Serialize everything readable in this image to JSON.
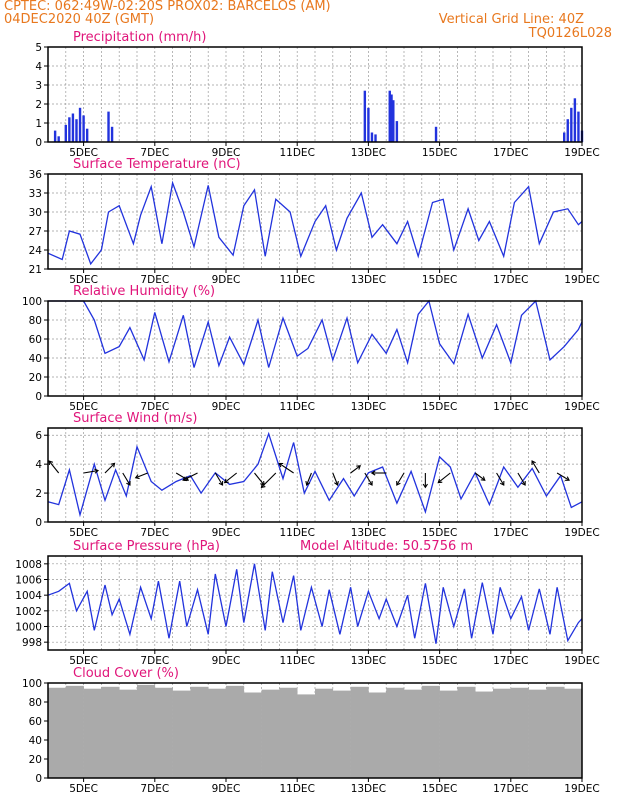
{
  "header": {
    "line1_left": "CPTEC:   062:49W-02:20S   PROX02: BARCELOS (AM)",
    "line2_left": "04DEC2020 40Z (GMT)",
    "line2_right": "Vertical Grid Line: 40Z",
    "line3_right": "TQ0126L028"
  },
  "colors": {
    "header": "#e8781e",
    "title": "#e0157a",
    "series": "#2233dd",
    "cloud": "#aaaaaa",
    "arrow": "#000000"
  },
  "chart_data": [
    {
      "type": "bar",
      "title": "Precipitation (mm/h)",
      "x_ticks": [
        "5DEC",
        "7DEC",
        "9DEC",
        "11DEC",
        "13DEC",
        "15DEC",
        "17DEC",
        "19DEC"
      ],
      "ylim": [
        0,
        5
      ],
      "y_ticks": [
        "0",
        "1",
        "2",
        "3",
        "4",
        "5"
      ],
      "grid": true,
      "x": [
        4.2,
        4.3,
        4.5,
        4.6,
        4.7,
        4.8,
        4.9,
        5.0,
        5.1,
        5.7,
        5.8,
        12.9,
        13.0,
        13.1,
        13.2,
        13.6,
        13.65,
        13.7,
        13.8,
        14.9,
        18.5,
        18.6,
        18.7,
        18.8,
        18.9,
        19.0
      ],
      "values": [
        0.6,
        0.3,
        0.9,
        1.3,
        1.5,
        1.2,
        1.8,
        1.4,
        0.7,
        1.6,
        0.8,
        2.7,
        1.8,
        0.5,
        0.4,
        2.7,
        2.5,
        2.2,
        1.1,
        0.8,
        0.5,
        1.2,
        1.8,
        2.3,
        1.6,
        0.6
      ]
    },
    {
      "type": "line",
      "title": "Surface Temperature (nC)",
      "x_ticks": [
        "5DEC",
        "7DEC",
        "9DEC",
        "11DEC",
        "13DEC",
        "15DEC",
        "17DEC",
        "19DEC"
      ],
      "ylim": [
        21,
        36
      ],
      "y_ticks": [
        "21",
        "24",
        "27",
        "30",
        "33",
        "36"
      ],
      "grid": true,
      "x": [
        4.0,
        4.4,
        4.6,
        4.9,
        5.2,
        5.5,
        5.7,
        6.0,
        6.4,
        6.6,
        6.9,
        7.2,
        7.5,
        7.8,
        8.1,
        8.5,
        8.8,
        9.2,
        9.5,
        9.8,
        10.1,
        10.4,
        10.8,
        11.1,
        11.5,
        11.8,
        12.1,
        12.4,
        12.8,
        13.1,
        13.4,
        13.8,
        14.1,
        14.4,
        14.8,
        15.1,
        15.4,
        15.8,
        16.1,
        16.4,
        16.8,
        17.1,
        17.5,
        17.8,
        18.2,
        18.6,
        18.9,
        19.0
      ],
      "values": [
        23.5,
        22.5,
        27.0,
        26.5,
        21.8,
        24.0,
        30.0,
        31.0,
        25.0,
        29.5,
        34.0,
        25.0,
        34.6,
        30.0,
        24.5,
        34.2,
        26.0,
        23.2,
        31.0,
        33.5,
        23.0,
        32.0,
        30.0,
        23.0,
        28.5,
        31.0,
        24.0,
        29.0,
        33.0,
        26.0,
        28.0,
        25.0,
        28.5,
        23.0,
        31.5,
        32.0,
        24.0,
        30.5,
        25.5,
        28.5,
        23.0,
        31.5,
        34.0,
        25.0,
        30.0,
        30.5,
        28.0,
        28.5
      ]
    },
    {
      "type": "line",
      "title": "Relative Humidity (%)",
      "x_ticks": [
        "5DEC",
        "7DEC",
        "9DEC",
        "11DEC",
        "13DEC",
        "15DEC",
        "17DEC",
        "19DEC"
      ],
      "ylim": [
        0,
        100
      ],
      "y_ticks": [
        "0",
        "20",
        "40",
        "60",
        "80",
        "100"
      ],
      "grid": true,
      "x": [
        4.0,
        4.5,
        5.0,
        5.3,
        5.6,
        6.0,
        6.3,
        6.7,
        7.0,
        7.4,
        7.8,
        8.1,
        8.5,
        8.8,
        9.1,
        9.5,
        9.9,
        10.2,
        10.6,
        11.0,
        11.3,
        11.7,
        12.0,
        12.4,
        12.7,
        13.1,
        13.5,
        13.8,
        14.1,
        14.4,
        14.7,
        15.0,
        15.4,
        15.8,
        16.2,
        16.6,
        17.0,
        17.3,
        17.7,
        18.1,
        18.5,
        18.9,
        19.0
      ],
      "values": [
        100,
        100,
        100,
        80,
        45,
        52,
        72,
        38,
        88,
        36,
        85,
        30,
        78,
        32,
        62,
        33,
        80,
        30,
        82,
        42,
        50,
        80,
        38,
        82,
        35,
        65,
        45,
        70,
        35,
        86,
        100,
        55,
        34,
        86,
        40,
        75,
        35,
        85,
        100,
        38,
        52,
        70,
        78
      ]
    },
    {
      "type": "line",
      "title": "Surface Wind (m/s)",
      "x_ticks": [
        "5DEC",
        "7DEC",
        "9DEC",
        "11DEC",
        "13DEC",
        "15DEC",
        "17DEC",
        "19DEC"
      ],
      "ylim": [
        0,
        6.5
      ],
      "y_ticks": [
        "0",
        "2",
        "4",
        "6"
      ],
      "grid": true,
      "x": [
        4.0,
        4.3,
        4.6,
        4.9,
        5.3,
        5.6,
        5.9,
        6.2,
        6.5,
        6.9,
        7.2,
        7.6,
        8.0,
        8.3,
        8.7,
        9.1,
        9.5,
        9.9,
        10.2,
        10.6,
        10.9,
        11.2,
        11.5,
        11.9,
        12.3,
        12.6,
        13.0,
        13.4,
        13.8,
        14.2,
        14.6,
        15.0,
        15.3,
        15.6,
        16.0,
        16.4,
        16.8,
        17.2,
        17.6,
        18.0,
        18.4,
        18.7,
        19.0
      ],
      "values": [
        1.4,
        1.2,
        3.6,
        0.5,
        4.0,
        1.5,
        3.6,
        1.8,
        5.2,
        2.8,
        2.2,
        2.8,
        3.2,
        2.0,
        3.4,
        2.6,
        2.8,
        4.0,
        6.1,
        3.0,
        5.5,
        2.0,
        3.5,
        1.5,
        3.0,
        1.8,
        3.4,
        3.8,
        1.3,
        3.5,
        0.7,
        4.5,
        3.8,
        1.6,
        3.4,
        1.2,
        3.8,
        2.4,
        3.7,
        1.8,
        3.2,
        1.0,
        1.4
      ],
      "wind_arrows": [
        {
          "x": 4.3,
          "u": -0.4,
          "v": 0.5
        },
        {
          "x": 5.0,
          "u": 0.6,
          "v": 0.1
        },
        {
          "x": 5.6,
          "u": 0.4,
          "v": 0.4
        },
        {
          "x": 6.1,
          "u": 0.3,
          "v": -0.5
        },
        {
          "x": 6.8,
          "u": -0.5,
          "v": -0.2
        },
        {
          "x": 7.6,
          "u": 0.5,
          "v": -0.3
        },
        {
          "x": 8.2,
          "u": -0.6,
          "v": -0.3
        },
        {
          "x": 8.7,
          "u": 0.3,
          "v": -0.5
        },
        {
          "x": 9.3,
          "u": -0.5,
          "v": -0.4
        },
        {
          "x": 9.8,
          "u": 0.4,
          "v": -0.5
        },
        {
          "x": 10.4,
          "u": -0.6,
          "v": -0.6
        },
        {
          "x": 10.9,
          "u": -0.6,
          "v": 0.4
        },
        {
          "x": 11.4,
          "u": -0.2,
          "v": -0.5
        },
        {
          "x": 12.0,
          "u": 0.2,
          "v": -0.5
        },
        {
          "x": 12.5,
          "u": 0.4,
          "v": 0.3
        },
        {
          "x": 12.9,
          "u": 0.3,
          "v": -0.5
        },
        {
          "x": 13.5,
          "u": -0.6,
          "v": 0.0
        },
        {
          "x": 14.0,
          "u": -0.3,
          "v": -0.5
        },
        {
          "x": 14.6,
          "u": 0.0,
          "v": -0.6
        },
        {
          "x": 15.3,
          "u": -0.5,
          "v": -0.4
        },
        {
          "x": 16.0,
          "u": 0.4,
          "v": -0.3
        },
        {
          "x": 16.6,
          "u": 0.3,
          "v": -0.5
        },
        {
          "x": 17.2,
          "u": 0.3,
          "v": -0.5
        },
        {
          "x": 17.8,
          "u": -0.3,
          "v": 0.5
        },
        {
          "x": 18.3,
          "u": 0.5,
          "v": -0.3
        }
      ]
    },
    {
      "type": "line",
      "title": "Surface Pressure (hPa)",
      "annotation": "Model Altitude: 50.5756 m",
      "x_ticks": [
        "5DEC",
        "7DEC",
        "9DEC",
        "11DEC",
        "13DEC",
        "15DEC",
        "17DEC",
        "19DEC"
      ],
      "ylim": [
        997,
        1009
      ],
      "y_ticks": [
        "998",
        "1000",
        "1002",
        "1004",
        "1006",
        "1008"
      ],
      "grid": true,
      "x": [
        4.0,
        4.3,
        4.6,
        4.8,
        5.1,
        5.3,
        5.6,
        5.8,
        6.0,
        6.3,
        6.6,
        6.9,
        7.1,
        7.4,
        7.7,
        7.9,
        8.2,
        8.5,
        8.7,
        9.0,
        9.3,
        9.5,
        9.8,
        10.1,
        10.3,
        10.6,
        10.9,
        11.1,
        11.4,
        11.7,
        11.9,
        12.2,
        12.5,
        12.7,
        13.0,
        13.3,
        13.5,
        13.8,
        14.1,
        14.3,
        14.6,
        14.9,
        15.1,
        15.4,
        15.7,
        15.9,
        16.2,
        16.5,
        16.7,
        17.0,
        17.3,
        17.5,
        17.8,
        18.1,
        18.3,
        18.6,
        18.9,
        19.0
      ],
      "values": [
        1004.0,
        1004.5,
        1005.5,
        1002.0,
        1004.5,
        999.5,
        1005.3,
        1001.5,
        1003.5,
        999.0,
        1005.0,
        1001.0,
        1005.8,
        998.5,
        1005.8,
        1000.0,
        1004.7,
        999.0,
        1006.7,
        1000.0,
        1007.3,
        1000.5,
        1008.0,
        999.5,
        1007.0,
        1000.5,
        1006.5,
        999.5,
        1005.0,
        1000.0,
        1004.7,
        999.0,
        1005.0,
        1000.0,
        1004.5,
        1001.0,
        1003.5,
        1000.0,
        1004.0,
        998.5,
        1005.5,
        997.8,
        1005.0,
        1000.0,
        1004.8,
        998.5,
        1005.6,
        999.0,
        1005.0,
        1001.0,
        1003.8,
        999.5,
        1004.8,
        999.0,
        1005.0,
        998.2,
        1000.5,
        1001.0
      ]
    },
    {
      "type": "bar",
      "title": "Cloud Cover (%)",
      "x_ticks": [
        "5DEC",
        "7DEC",
        "9DEC",
        "11DEC",
        "13DEC",
        "15DEC",
        "17DEC",
        "19DEC"
      ],
      "ylim": [
        0,
        100
      ],
      "y_ticks": [
        "0",
        "20",
        "40",
        "60",
        "80",
        "100"
      ],
      "grid": true,
      "x": [
        4.0,
        4.5,
        5.0,
        5.5,
        6.0,
        6.5,
        7.0,
        7.5,
        8.0,
        8.5,
        9.0,
        9.5,
        10.0,
        10.5,
        11.0,
        11.5,
        12.0,
        12.5,
        13.0,
        13.5,
        14.0,
        14.5,
        15.0,
        15.5,
        16.0,
        16.5,
        17.0,
        17.5,
        18.0,
        18.5,
        19.0
      ],
      "values": [
        95,
        97,
        94,
        96,
        93,
        98,
        95,
        92,
        96,
        94,
        97,
        90,
        93,
        95,
        88,
        94,
        92,
        96,
        90,
        95,
        93,
        97,
        92,
        96,
        91,
        94,
        95,
        93,
        96,
        94,
        82
      ]
    }
  ]
}
